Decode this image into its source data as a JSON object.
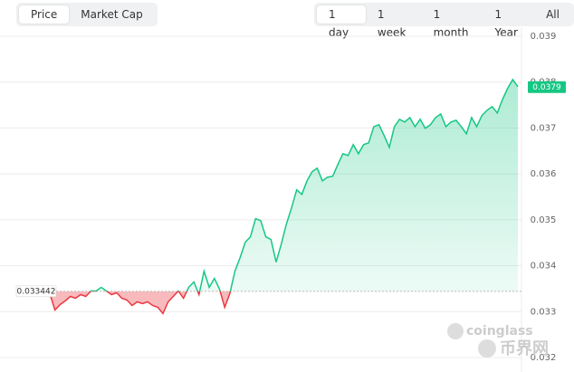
{
  "chart_data": {
    "type": "line",
    "tabs_left": {
      "items": [
        "Price",
        "Market Cap"
      ],
      "selected": 0
    },
    "tabs_right": {
      "items": [
        "1 day",
        "1 week",
        "1 month",
        "1 Year",
        "All"
      ],
      "selected": 0
    },
    "values": [
      0.03339,
      0.033035,
      0.033154,
      0.033232,
      0.033331,
      0.033291,
      0.03337,
      0.033331,
      0.033449,
      0.033449,
      0.033528,
      0.033449,
      0.03337,
      0.033409,
      0.033291,
      0.033252,
      0.033134,
      0.033213,
      0.033173,
      0.033213,
      0.033134,
      0.033094,
      0.032957,
      0.033213,
      0.033331,
      0.033449,
      0.033291,
      0.033528,
      0.033646,
      0.03337,
      0.033882,
      0.033528,
      0.033724,
      0.033488,
      0.033094,
      0.03339,
      0.033882,
      0.034177,
      0.034512,
      0.03463,
      0.035024,
      0.034984,
      0.03463,
      0.034571,
      0.034079,
      0.034472,
      0.034906,
      0.03526,
      0.035654,
      0.035555,
      0.03585,
      0.036047,
      0.036126,
      0.03585,
      0.035929,
      0.035949,
      0.036205,
      0.036441,
      0.036402,
      0.036638,
      0.036441,
      0.036638,
      0.036677,
      0.037031,
      0.037071,
      0.036835,
      0.036579,
      0.037031,
      0.037189,
      0.03713,
      0.037228,
      0.037031,
      0.037189,
      0.036992,
      0.037071,
      0.037228,
      0.037307,
      0.037031,
      0.03713,
      0.037169,
      0.037031,
      0.036874,
      0.037228,
      0.037031,
      0.037268,
      0.037386,
      0.037465,
      0.037327,
      0.037622,
      0.037858,
      0.038055,
      0.0379
    ],
    "baseline": 0.033442,
    "current_price": 0.0379,
    "up_color": "#16c784",
    "down_color": "#ea3943",
    "ylim": [
      0.032,
      0.039
    ],
    "yticks": [
      0.032,
      0.033,
      0.034,
      0.035,
      0.036,
      0.037,
      0.038,
      0.039
    ],
    "grid": true,
    "watermark": [
      "coinglass",
      "币界网"
    ]
  }
}
